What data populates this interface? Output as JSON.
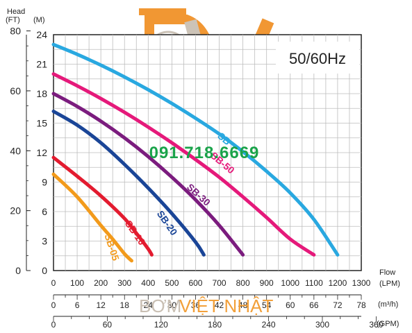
{
  "watermark": {
    "phone": "091.718.6669",
    "brand_part1": "BƠM",
    "brand_part2": "VIỆT NHẬT",
    "logo_letters": "bW",
    "logo_color_primary": "#f08c1e",
    "logo_color_secondary": "#bdb3a6"
  },
  "chart_data": {
    "type": "line",
    "frequency_label": "50/60Hz",
    "ylabel_left": "Head",
    "ylabel_ft_unit": "(FT)",
    "ylabel_m_unit": "(M)",
    "xlabel": "Flow",
    "xlabel_unit": "(LPM)",
    "x_unit_m3h": "(m³/h)",
    "x_unit_gpm": "(GPM)",
    "xlim_lpm": [
      0,
      1300
    ],
    "ylim_m": [
      0,
      24
    ],
    "ft_ticks": [
      "0",
      "20",
      "40",
      "60",
      "80"
    ],
    "m_ticks": [
      "0",
      "3",
      "6",
      "9",
      "12",
      "15",
      "18",
      "21",
      "24"
    ],
    "lpm_ticks": [
      "0",
      "100",
      "200",
      "300",
      "400",
      "500",
      "600",
      "700",
      "800",
      "900",
      "1000",
      "1100",
      "1200",
      "1300"
    ],
    "m3h_ticks": [
      "0",
      "6",
      "12",
      "18",
      "24",
      "30",
      "36",
      "42",
      "48",
      "54",
      "60",
      "66",
      "72",
      "78"
    ],
    "gpm_ticks": [
      "0",
      "60",
      "120",
      "180",
      "240",
      "300",
      "360"
    ],
    "grid": true,
    "series": [
      {
        "name": "SB-05",
        "color": "#f29a1b",
        "x": [
          0,
          100,
          200,
          250,
          300,
          330
        ],
        "y": [
          9.8,
          7.5,
          4.6,
          3.2,
          1.7,
          1.0
        ]
      },
      {
        "name": "SB-10",
        "color": "#e31b2f",
        "x": [
          0,
          100,
          200,
          300,
          350,
          400,
          415
        ],
        "y": [
          11.5,
          9.6,
          7.6,
          5.3,
          3.8,
          2.2,
          1.6
        ]
      },
      {
        "name": "SB-20",
        "color": "#1a4597",
        "x": [
          0,
          100,
          200,
          300,
          400,
          500,
          600,
          635
        ],
        "y": [
          16.2,
          14.8,
          13.0,
          10.8,
          8.4,
          5.8,
          2.9,
          1.6
        ]
      },
      {
        "name": "SB-30",
        "color": "#7b1c7e",
        "x": [
          0,
          100,
          200,
          300,
          400,
          500,
          600,
          700,
          800
        ],
        "y": [
          18.0,
          16.7,
          15.2,
          13.5,
          11.6,
          9.5,
          7.2,
          4.6,
          1.6
        ]
      },
      {
        "name": "SB-50",
        "color": "#e5197a",
        "x": [
          0,
          100,
          200,
          300,
          400,
          500,
          600,
          700,
          800,
          900,
          1000,
          1100
        ],
        "y": [
          20.0,
          18.8,
          17.5,
          16.1,
          14.6,
          13.0,
          11.3,
          9.5,
          7.5,
          5.4,
          3.2,
          1.6
        ]
      },
      {
        "name": "SB",
        "color": "#29a8e0",
        "x": [
          0,
          100,
          200,
          300,
          400,
          500,
          600,
          700,
          800,
          900,
          1000,
          1100,
          1200
        ],
        "y": [
          23.0,
          22.0,
          20.9,
          19.7,
          18.4,
          17.0,
          15.5,
          13.9,
          12.1,
          10.1,
          7.9,
          5.2,
          1.6
        ]
      }
    ]
  }
}
